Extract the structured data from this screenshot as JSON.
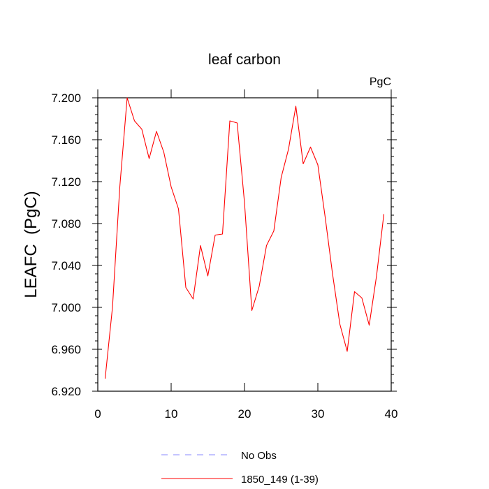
{
  "chart_data": {
    "type": "line",
    "title": "leaf carbon",
    "units_label": "PgC",
    "ylabel": "LEAFC  (PgC)",
    "xlabel": "",
    "xlim": [
      0,
      40
    ],
    "ylim": [
      6.92,
      7.2
    ],
    "x_ticks": [
      0,
      10,
      20,
      30,
      40
    ],
    "x_tick_labels": [
      "0",
      "10",
      "20",
      "30",
      "40"
    ],
    "y_ticks": [
      6.92,
      6.96,
      7.0,
      7.04,
      7.08,
      7.12,
      7.16,
      7.2
    ],
    "y_tick_labels": [
      "6.920",
      "6.960",
      "7.000",
      "7.040",
      "7.080",
      "7.120",
      "7.160",
      "7.200"
    ],
    "grid": false,
    "legend_position": "bottom",
    "series": [
      {
        "name": "1850_149 (1-39)",
        "color": "#ff0000",
        "style": "solid",
        "x": [
          1,
          2,
          3,
          4,
          5,
          6,
          7,
          8,
          9,
          10,
          11,
          12,
          13,
          14,
          15,
          16,
          17,
          18,
          19,
          20,
          21,
          22,
          23,
          24,
          25,
          26,
          27,
          28,
          29,
          30,
          31,
          32,
          33,
          34,
          35,
          36,
          37,
          38,
          39
        ],
        "y": [
          6.932,
          7.0,
          7.115,
          7.2,
          7.178,
          7.17,
          7.142,
          7.168,
          7.148,
          7.115,
          7.094,
          7.019,
          7.008,
          7.059,
          7.03,
          7.069,
          7.07,
          7.178,
          7.176,
          7.1,
          6.997,
          7.02,
          7.059,
          7.073,
          7.124,
          7.151,
          7.192,
          7.137,
          7.153,
          7.136,
          7.086,
          7.032,
          6.984,
          6.958,
          7.015,
          7.009,
          6.983,
          7.03,
          7.089
        ]
      }
    ],
    "legend": [
      {
        "label": "No Obs",
        "color": "#8a8aff",
        "style": "dashed"
      },
      {
        "label": "1850_149 (1-39)",
        "color": "#ff0000",
        "style": "solid"
      }
    ]
  }
}
